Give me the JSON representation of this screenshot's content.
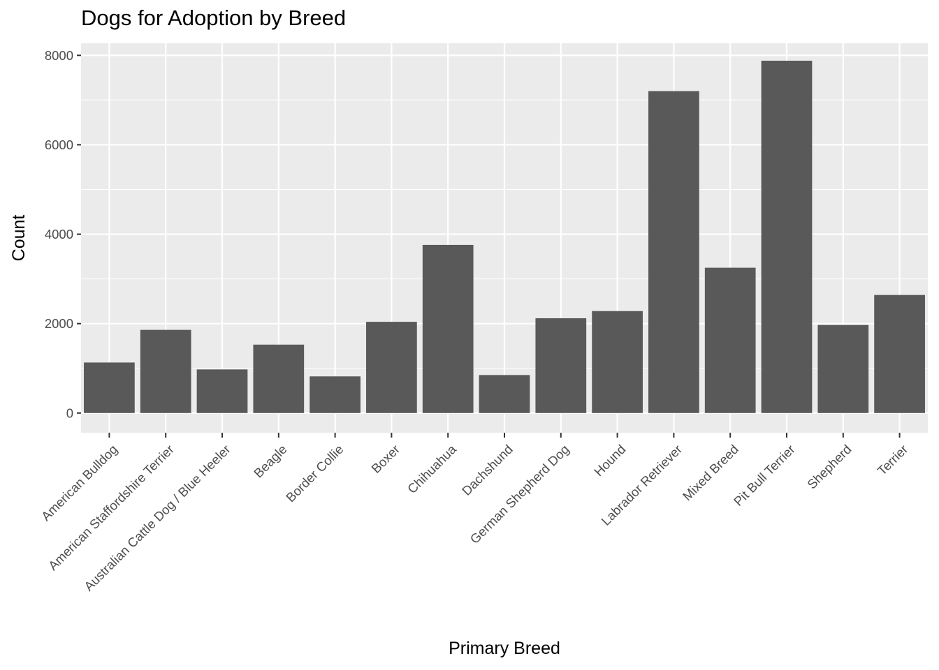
{
  "chart_data": {
    "type": "bar",
    "title": "Dogs for Adoption by Breed",
    "xlabel": "Primary Breed",
    "ylabel": "Count",
    "categories": [
      "American Bulldog",
      "American Staffordshire Terrier",
      "Australian Cattle Dog / Blue Heeler",
      "Beagle",
      "Border Collie",
      "Boxer",
      "Chihuahua",
      "Dachshund",
      "German Shepherd Dog",
      "Hound",
      "Labrador Retriever",
      "Mixed Breed",
      "Pit Bull Terrier",
      "Shepherd",
      "Terrier"
    ],
    "values": [
      1130,
      1860,
      975,
      1530,
      820,
      2040,
      3760,
      850,
      2120,
      2280,
      7200,
      3250,
      7880,
      1970,
      2640
    ],
    "ylim": [
      -440,
      8270
    ],
    "yticks": [
      0,
      2000,
      4000,
      6000,
      8000
    ],
    "grid": true,
    "colors": {
      "bar": "#595959",
      "panel": "#ebebeb",
      "grid": "#ffffff",
      "tick": "#333333"
    }
  }
}
